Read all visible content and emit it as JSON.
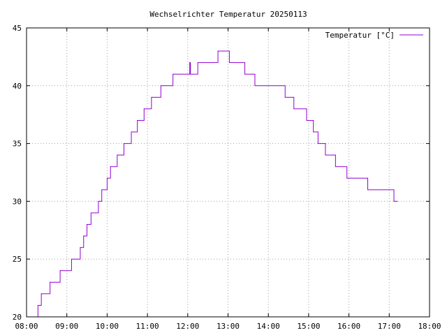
{
  "chart_data": {
    "type": "line",
    "title": "Wechselrichter Temperatur 20250113",
    "xlabel": "",
    "ylabel": "",
    "xlim": [
      "08:00",
      "18:00"
    ],
    "ylim": [
      20,
      45
    ],
    "x_ticks": [
      "08:00",
      "09:00",
      "10:00",
      "11:00",
      "12:00",
      "13:00",
      "14:00",
      "15:00",
      "16:00",
      "17:00",
      "18:00"
    ],
    "y_ticks": [
      20,
      25,
      30,
      35,
      40,
      45
    ],
    "grid": true,
    "legend_position": "top-right",
    "step_line": true,
    "series": [
      {
        "name": "Temperatur [°C]",
        "color": "#9400d3",
        "points": [
          [
            "08:15",
            20
          ],
          [
            "08:17",
            21
          ],
          [
            "08:22",
            22
          ],
          [
            "08:35",
            23
          ],
          [
            "08:50",
            24
          ],
          [
            "09:07",
            25
          ],
          [
            "09:20",
            26
          ],
          [
            "09:25",
            27
          ],
          [
            "09:30",
            28
          ],
          [
            "09:36",
            29
          ],
          [
            "09:47",
            30
          ],
          [
            "09:52",
            31
          ],
          [
            "10:00",
            32
          ],
          [
            "10:05",
            33
          ],
          [
            "10:15",
            34
          ],
          [
            "10:25",
            35
          ],
          [
            "10:36",
            36
          ],
          [
            "10:45",
            37
          ],
          [
            "10:55",
            38
          ],
          [
            "11:06",
            39
          ],
          [
            "11:20",
            40
          ],
          [
            "11:38",
            41
          ],
          [
            "12:03",
            42
          ],
          [
            "12:04",
            41
          ],
          [
            "12:15",
            42
          ],
          [
            "12:45",
            43
          ],
          [
            "13:02",
            42
          ],
          [
            "13:25",
            41
          ],
          [
            "13:40",
            40
          ],
          [
            "14:25",
            39
          ],
          [
            "14:38",
            38
          ],
          [
            "14:57",
            37
          ],
          [
            "15:07",
            36
          ],
          [
            "15:14",
            35
          ],
          [
            "15:25",
            34
          ],
          [
            "15:40",
            33
          ],
          [
            "15:57",
            32
          ],
          [
            "16:28",
            31
          ],
          [
            "17:07",
            30
          ],
          [
            "17:12",
            30
          ]
        ]
      }
    ]
  }
}
